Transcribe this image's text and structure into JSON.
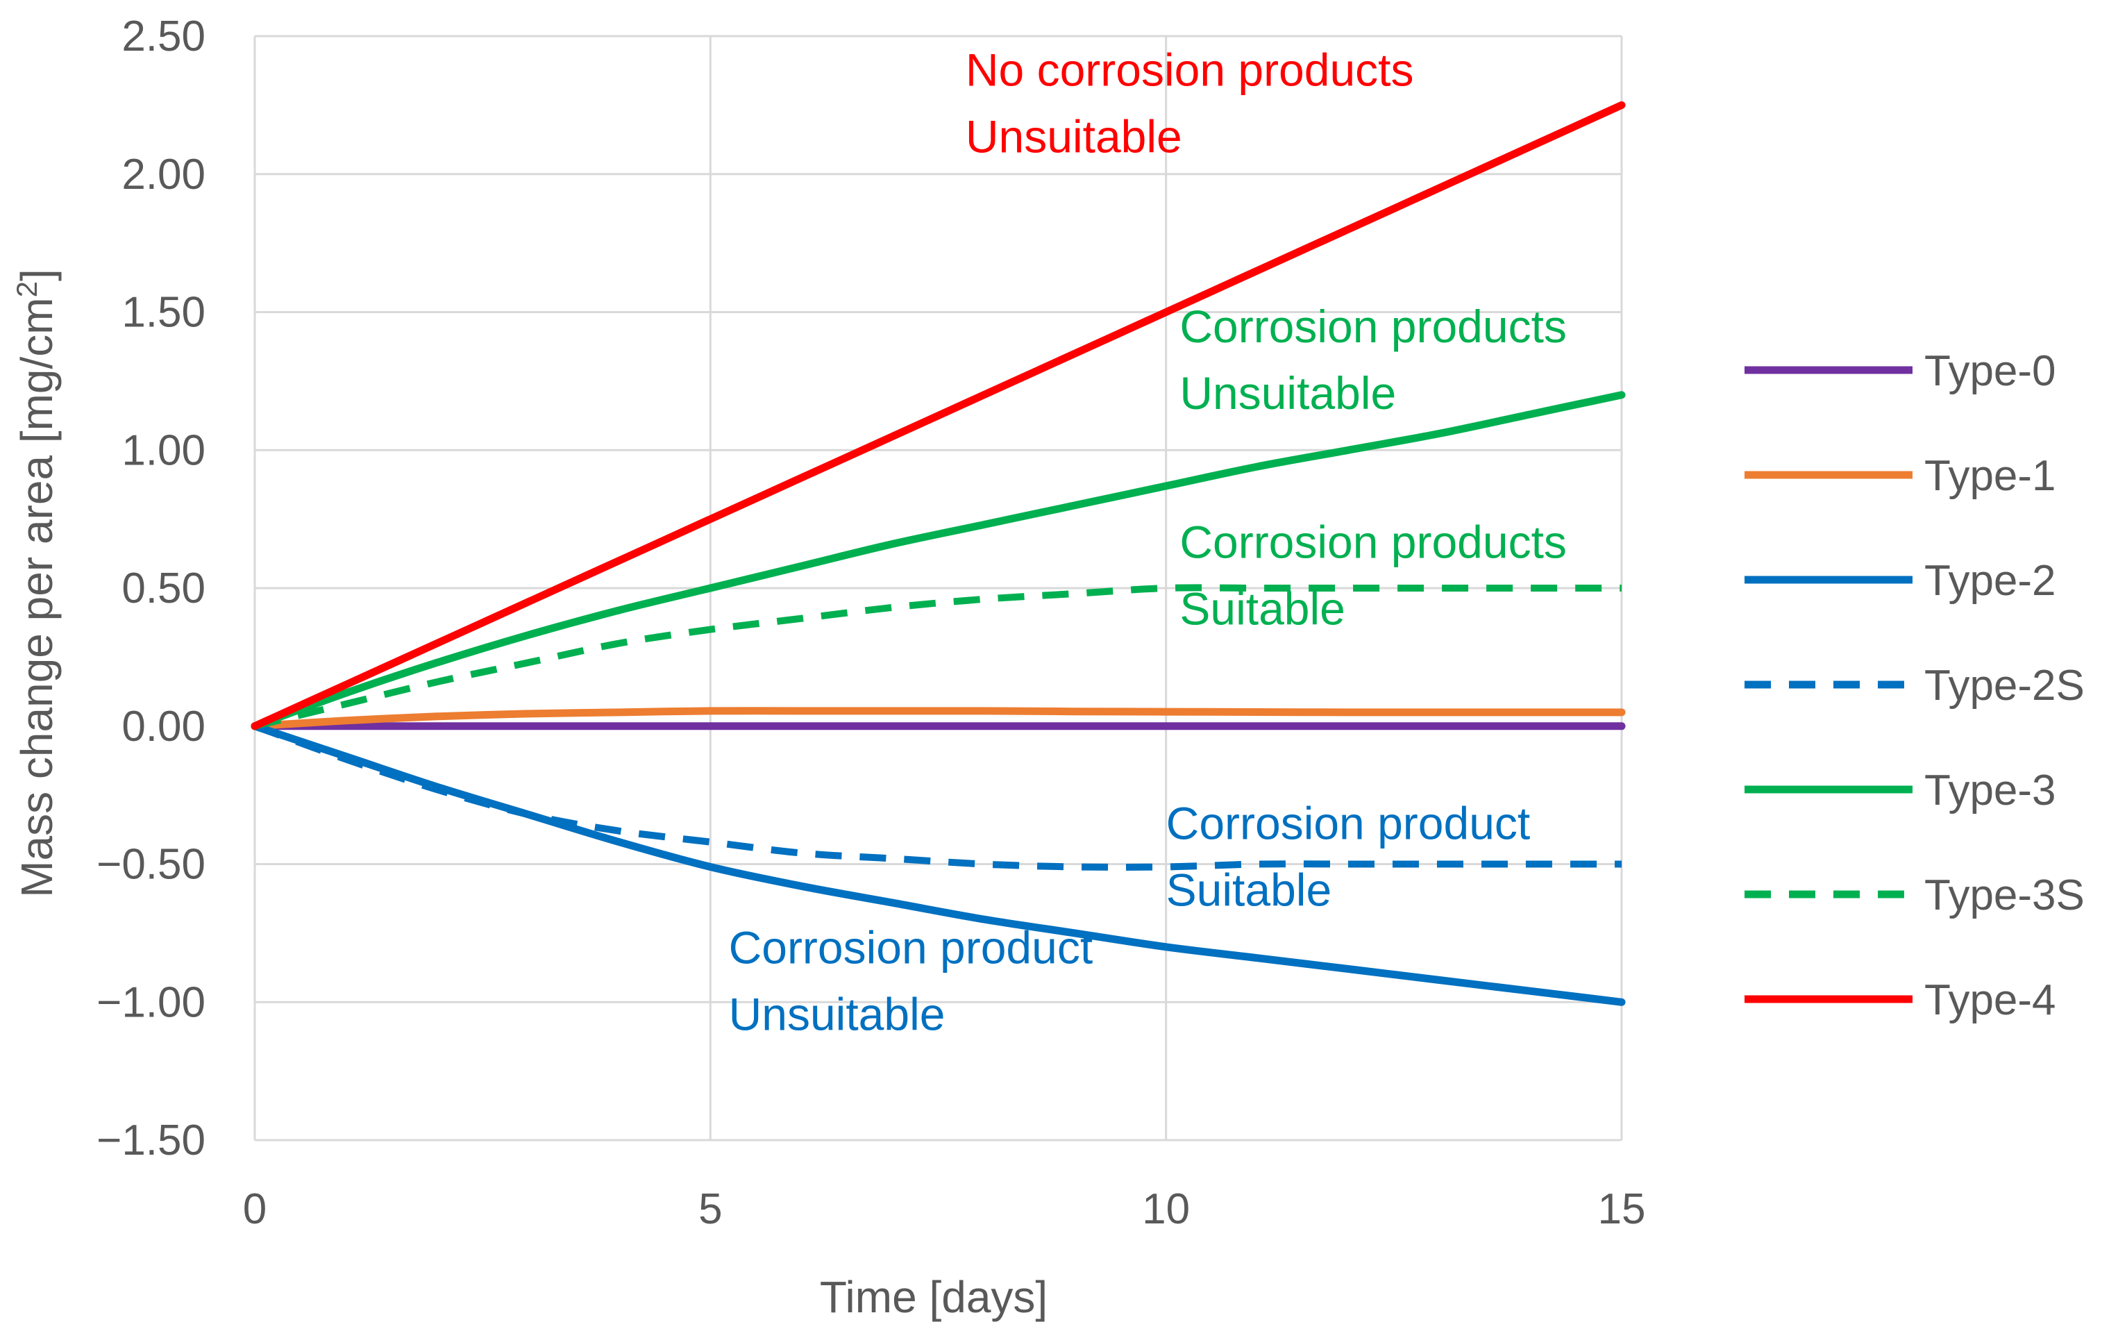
{
  "chart_data": {
    "type": "line",
    "title": "",
    "xlabel": "Time [days]",
    "ylabel_main": "Mass change per area [mg/cm",
    "ylabel_sup": "2",
    "ylabel_end": "]",
    "xlim": [
      0,
      15
    ],
    "ylim": [
      -1.5,
      2.5
    ],
    "xticks": [
      0,
      5,
      10,
      15
    ],
    "xtick_labels": [
      "0",
      "5",
      "10",
      "15"
    ],
    "yticks": [
      2.5,
      2.0,
      1.5,
      1.0,
      0.5,
      0.0,
      -0.5,
      -1.0,
      -1.5
    ],
    "ytick_labels": [
      "2.50",
      "2.00",
      "1.50",
      "1.00",
      "0.50",
      "0.00",
      "−0.50",
      "−1.00",
      "−1.50"
    ],
    "grid": true,
    "legend_position": "right",
    "x": [
      0,
      1,
      2,
      3,
      4,
      5,
      6,
      7,
      8,
      9,
      10,
      11,
      12,
      13,
      14,
      15
    ],
    "series": [
      {
        "name": "Type-0",
        "color": "#7030a0",
        "dash": "solid",
        "values": [
          0,
          0,
          0,
          0,
          0,
          0,
          0,
          0,
          0,
          0,
          0,
          0,
          0,
          0,
          0,
          0
        ]
      },
      {
        "name": "Type-1",
        "color": "#ed7d31",
        "dash": "solid",
        "values": [
          0,
          0.02,
          0.035,
          0.045,
          0.05,
          0.055,
          0.055,
          0.055,
          0.055,
          0.053,
          0.052,
          0.051,
          0.05,
          0.05,
          0.05,
          0.05
        ]
      },
      {
        "name": "Type-2",
        "color": "#0070c0",
        "dash": "solid",
        "values": [
          0,
          -0.11,
          -0.22,
          -0.32,
          -0.42,
          -0.51,
          -0.58,
          -0.64,
          -0.7,
          -0.75,
          -0.8,
          -0.84,
          -0.88,
          -0.92,
          -0.96,
          -1.0
        ]
      },
      {
        "name": "Type-2S",
        "color": "#0070c0",
        "dash": "dashed",
        "values": [
          0,
          -0.12,
          -0.23,
          -0.32,
          -0.38,
          -0.42,
          -0.46,
          -0.48,
          -0.5,
          -0.51,
          -0.51,
          -0.5,
          -0.5,
          -0.5,
          -0.5,
          -0.5
        ]
      },
      {
        "name": "Type-3",
        "color": "#00b050",
        "dash": "solid",
        "values": [
          0,
          0.12,
          0.23,
          0.33,
          0.42,
          0.5,
          0.58,
          0.66,
          0.73,
          0.8,
          0.87,
          0.94,
          1.0,
          1.06,
          1.13,
          1.2
        ]
      },
      {
        "name": "Type-3S",
        "color": "#00b050",
        "dash": "dashed",
        "values": [
          0,
          0.08,
          0.16,
          0.23,
          0.3,
          0.35,
          0.39,
          0.43,
          0.46,
          0.48,
          0.5,
          0.5,
          0.5,
          0.5,
          0.5,
          0.5
        ]
      },
      {
        "name": "Type-4",
        "color": "#ff0000",
        "dash": "solid",
        "values": [
          0,
          0.15,
          0.3,
          0.45,
          0.6,
          0.75,
          0.9,
          1.05,
          1.2,
          1.35,
          1.5,
          1.65,
          1.8,
          1.95,
          2.1,
          2.25
        ]
      }
    ],
    "annotations": [
      {
        "lines": [
          "No corrosion products",
          "Unsuitable"
        ],
        "color": "#ff0000",
        "x": 7.8,
        "y": 2.32
      },
      {
        "lines": [
          "Corrosion products",
          "Unsuitable"
        ],
        "color": "#00b050",
        "x": 10.15,
        "y": 1.39
      },
      {
        "lines": [
          "Corrosion products",
          "Suitable"
        ],
        "color": "#00b050",
        "x": 10.15,
        "y": 0.61
      },
      {
        "lines": [
          "Corrosion product",
          "Suitable"
        ],
        "color": "#0070c0",
        "x": 10.0,
        "y": -0.41
      },
      {
        "lines": [
          "Corrosion product",
          "Unsuitable"
        ],
        "color": "#0070c0",
        "x": 5.2,
        "y": -0.86
      }
    ]
  }
}
